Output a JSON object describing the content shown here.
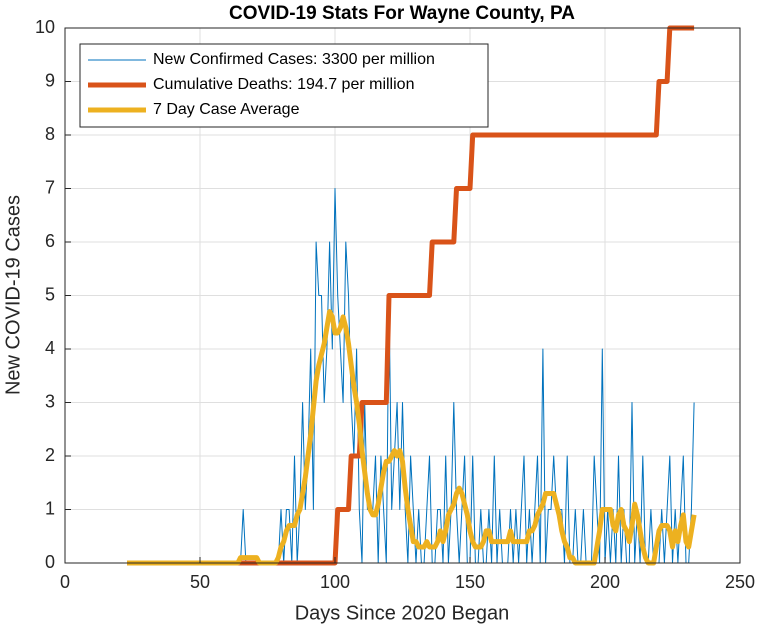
{
  "chart_data": {
    "type": "line",
    "title": "COVID-19 Stats For Wayne County, PA",
    "x_label": "Days Since 2020 Began",
    "y_label": "New COVID-19 Cases",
    "xlim": [
      0,
      250
    ],
    "xticks": [
      0,
      50,
      100,
      150,
      200,
      250
    ],
    "ylim": [
      0,
      10
    ],
    "yticks": [
      0,
      1,
      2,
      3,
      4,
      5,
      6,
      7,
      8,
      9,
      10
    ],
    "grid": true,
    "legend": "upper left",
    "x": [
      23,
      24,
      25,
      26,
      27,
      28,
      29,
      30,
      31,
      32,
      33,
      34,
      35,
      36,
      37,
      38,
      39,
      40,
      41,
      42,
      43,
      44,
      45,
      46,
      47,
      48,
      49,
      50,
      51,
      52,
      53,
      54,
      55,
      56,
      57,
      58,
      59,
      60,
      61,
      62,
      63,
      64,
      65,
      66,
      67,
      68,
      69,
      70,
      71,
      72,
      73,
      74,
      75,
      76,
      77,
      78,
      79,
      80,
      81,
      82,
      83,
      84,
      85,
      86,
      87,
      88,
      89,
      90,
      91,
      92,
      93,
      94,
      95,
      96,
      97,
      98,
      99,
      100,
      101,
      102,
      103,
      104,
      105,
      106,
      107,
      108,
      109,
      110,
      111,
      112,
      113,
      114,
      115,
      116,
      117,
      118,
      119,
      120,
      121,
      122,
      123,
      124,
      125,
      126,
      127,
      128,
      129,
      130,
      131,
      132,
      133,
      134,
      135,
      136,
      137,
      138,
      139,
      140,
      141,
      142,
      143,
      144,
      145,
      146,
      147,
      148,
      149,
      150,
      151,
      152,
      153,
      154,
      155,
      156,
      157,
      158,
      159,
      160,
      161,
      162,
      163,
      164,
      165,
      166,
      167,
      168,
      169,
      170,
      171,
      172,
      173,
      174,
      175,
      176,
      177,
      178,
      179,
      180,
      181,
      182,
      183,
      184,
      185,
      186,
      187,
      188,
      189,
      190,
      191,
      192,
      193,
      194,
      195,
      196,
      197,
      198,
      199,
      200,
      201,
      202,
      203,
      204,
      205,
      206,
      207,
      208,
      209,
      210,
      211,
      212,
      213,
      214,
      215,
      216,
      217,
      218,
      219,
      220,
      221,
      222,
      223,
      224,
      225,
      226,
      227,
      228,
      229,
      230,
      231,
      232,
      233
    ],
    "series": [
      {
        "name": "New Confirmed Cases: 3300 per million",
        "color": "#0072BD",
        "width": 1,
        "values": [
          0,
          0,
          0,
          0,
          0,
          0,
          0,
          0,
          0,
          0,
          0,
          0,
          0,
          0,
          0,
          0,
          0,
          0,
          0,
          0,
          0,
          0,
          0,
          0,
          0,
          0,
          0,
          0,
          0,
          0,
          0,
          0,
          0,
          0,
          0,
          0,
          0,
          0,
          0,
          0,
          0,
          0,
          0,
          1,
          0,
          0,
          0,
          0,
          0,
          0,
          0,
          0,
          0,
          0,
          0,
          0,
          0,
          1,
          0,
          1,
          1,
          0,
          2,
          0,
          1,
          3,
          1,
          2,
          4,
          1,
          6,
          5,
          5,
          3,
          4,
          6,
          4,
          7,
          5,
          4,
          3,
          6,
          5,
          3,
          2,
          4,
          1,
          0,
          3,
          1,
          1,
          1,
          2,
          0,
          2,
          1,
          0,
          5,
          1,
          2,
          3,
          1,
          3,
          1,
          0,
          2,
          1,
          0,
          1,
          0,
          0,
          1,
          2,
          0,
          0,
          1,
          1,
          0,
          2,
          0,
          1,
          3,
          1,
          0,
          1,
          2,
          0,
          0,
          2,
          0,
          0,
          1,
          0,
          0,
          1,
          0,
          2,
          0,
          1,
          0,
          0,
          0,
          1,
          0,
          1,
          0,
          1,
          2,
          0,
          1,
          0,
          1,
          2,
          0,
          4,
          0,
          1,
          1,
          2,
          1,
          1,
          1,
          0,
          2,
          0,
          0,
          1,
          0,
          0,
          1,
          0,
          0,
          0,
          2,
          1,
          0,
          4,
          0,
          1,
          0,
          1,
          0,
          2,
          0,
          1,
          0,
          0,
          3,
          0,
          1,
          0,
          2,
          0,
          0,
          1,
          0,
          0,
          0,
          1,
          0,
          1,
          2,
          0,
          1,
          0,
          1,
          2,
          0,
          0,
          1,
          3
        ]
      },
      {
        "name": "Cumulative Deaths: 194.7 per million",
        "color": "#D95319",
        "width": 5,
        "values": [
          0,
          0,
          0,
          0,
          0,
          0,
          0,
          0,
          0,
          0,
          0,
          0,
          0,
          0,
          0,
          0,
          0,
          0,
          0,
          0,
          0,
          0,
          0,
          0,
          0,
          0,
          0,
          0,
          0,
          0,
          0,
          0,
          0,
          0,
          0,
          0,
          0,
          0,
          0,
          0,
          0,
          0,
          0,
          0,
          0,
          0,
          0,
          0,
          0,
          0,
          0,
          0,
          0,
          0,
          0,
          0,
          0,
          0,
          0,
          0,
          0,
          0,
          0,
          0,
          0,
          0,
          0,
          0,
          0,
          0,
          0,
          0,
          0,
          0,
          0,
          0,
          0,
          0,
          1,
          1,
          1,
          1,
          1,
          2,
          2,
          2,
          2,
          3,
          3,
          3,
          3,
          3,
          3,
          3,
          3,
          3,
          3,
          5,
          5,
          5,
          5,
          5,
          5,
          5,
          5,
          5,
          5,
          5,
          5,
          5,
          5,
          5,
          5,
          6,
          6,
          6,
          6,
          6,
          6,
          6,
          6,
          6,
          7,
          7,
          7,
          7,
          7,
          7,
          8,
          8,
          8,
          8,
          8,
          8,
          8,
          8,
          8,
          8,
          8,
          8,
          8,
          8,
          8,
          8,
          8,
          8,
          8,
          8,
          8,
          8,
          8,
          8,
          8,
          8,
          8,
          8,
          8,
          8,
          8,
          8,
          8,
          8,
          8,
          8,
          8,
          8,
          8,
          8,
          8,
          8,
          8,
          8,
          8,
          8,
          8,
          8,
          8,
          8,
          8,
          8,
          8,
          8,
          8,
          8,
          8,
          8,
          8,
          8,
          8,
          8,
          8,
          8,
          8,
          8,
          8,
          8,
          8,
          9,
          9,
          9,
          9,
          10,
          10,
          10,
          10,
          10,
          10,
          10,
          10,
          10,
          10
        ]
      },
      {
        "name": "7 Day Case Average",
        "color": "#EDB120",
        "width": 5,
        "values": [
          0,
          0,
          0,
          0,
          0,
          0,
          0,
          0,
          0,
          0,
          0,
          0,
          0,
          0,
          0,
          0,
          0,
          0,
          0,
          0,
          0,
          0,
          0,
          0,
          0,
          0,
          0,
          0,
          0,
          0,
          0,
          0,
          0,
          0,
          0,
          0,
          0,
          0,
          0,
          0,
          0,
          0,
          0.1,
          0.1,
          0.1,
          0.1,
          0.1,
          0.1,
          0.1,
          0,
          0,
          0,
          0,
          0,
          0,
          0,
          0.1,
          0.3,
          0.4,
          0.6,
          0.7,
          0.7,
          0.7,
          0.9,
          1,
          1.3,
          1.6,
          2,
          2.4,
          2.9,
          3.4,
          3.7,
          3.9,
          4.1,
          4.4,
          4.7,
          4.6,
          4.3,
          4.3,
          4.4,
          4.6,
          4.4,
          4.1,
          3.7,
          3.3,
          3,
          2.6,
          2.1,
          1.7,
          1.3,
          1,
          0.9,
          0.9,
          1.1,
          1.4,
          1.7,
          1.9,
          1.9,
          2,
          2.1,
          2,
          2.1,
          1.9,
          1.4,
          1,
          0.7,
          0.4,
          0.4,
          0.3,
          0.3,
          0.3,
          0.4,
          0.3,
          0.3,
          0.3,
          0.4,
          0.6,
          0.4,
          0.6,
          0.9,
          1,
          1.1,
          1.3,
          1.4,
          1.3,
          1.1,
          0.9,
          0.6,
          0.4,
          0.3,
          0.3,
          0.3,
          0.4,
          0.6,
          0.6,
          0.4,
          0.4,
          0.4,
          0.4,
          0.4,
          0.4,
          0.4,
          0.6,
          0.4,
          0.4,
          0.4,
          0.4,
          0.4,
          0.4,
          0.6,
          0.6,
          0.7,
          0.9,
          1,
          1.1,
          1.3,
          1.3,
          1.3,
          1.3,
          1.1,
          0.9,
          0.6,
          0.4,
          0.3,
          0.1,
          0.1,
          0,
          0,
          0,
          0,
          0,
          0,
          0,
          0,
          0.3,
          0.6,
          1,
          1,
          1,
          1,
          0.7,
          0.6,
          0.9,
          1,
          0.7,
          0.6,
          0.4,
          0.7,
          1.1,
          0.9,
          0.6,
          0.3,
          0.1,
          0,
          0,
          0,
          0.3,
          0.6,
          0.7,
          0.7,
          0.7,
          0.6,
          0.3,
          0.6,
          0.4,
          0.7,
          0.9,
          0.4,
          0.3,
          0.6,
          0.9
        ]
      }
    ]
  }
}
